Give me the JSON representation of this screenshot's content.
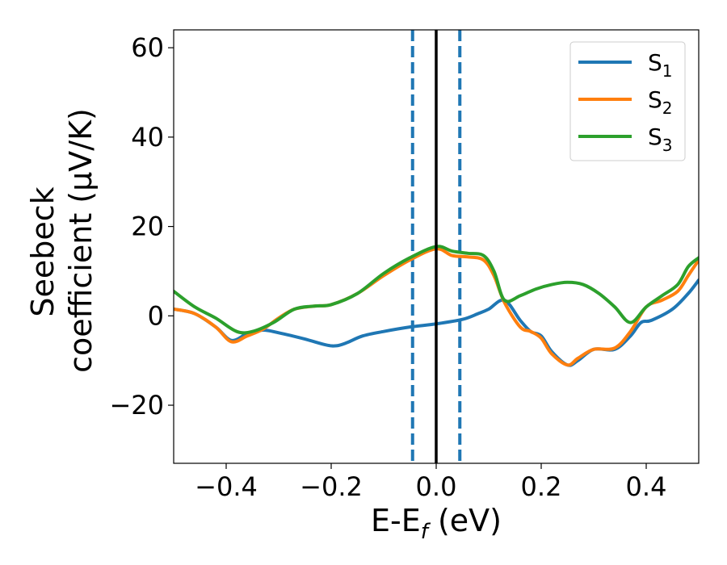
{
  "chart_data": {
    "type": "line",
    "xlabel": "E-E",
    "xlabel_sub": "f",
    "xlabel_unit": " (eV)",
    "ylabel_line1": "Seebeck",
    "ylabel_line2": "coefficient  (μV/K)",
    "xlim": [
      -0.5,
      0.5
    ],
    "ylim": [
      -33,
      64
    ],
    "xticks": [
      -0.4,
      -0.2,
      0.0,
      0.2,
      0.4
    ],
    "xtick_labels": [
      "−0.4",
      "−0.2",
      "0.0",
      "0.2",
      "0.4"
    ],
    "yticks": [
      -20,
      0,
      20,
      40,
      60
    ],
    "ytick_labels": [
      "−20",
      "0",
      "20",
      "40",
      "60"
    ],
    "grid": false,
    "legend_position": "top-right",
    "vlines": [
      {
        "x": 0.0,
        "style": "solid",
        "color": "#000000"
      },
      {
        "x": -0.045,
        "style": "dashed",
        "color": "#1f77b4"
      },
      {
        "x": 0.045,
        "style": "dashed",
        "color": "#1f77b4"
      }
    ],
    "series": [
      {
        "name": "S",
        "sub": "1",
        "color": "#1f77b4",
        "x": [
          -0.5,
          -0.46,
          -0.42,
          -0.39,
          -0.36,
          -0.33,
          -0.3,
          -0.25,
          -0.21,
          -0.19,
          -0.17,
          -0.14,
          -0.1,
          -0.05,
          0.0,
          0.05,
          0.08,
          0.1,
          0.13,
          0.16,
          0.18,
          0.2,
          0.22,
          0.25,
          0.27,
          0.3,
          0.34,
          0.37,
          0.39,
          0.41,
          0.45,
          0.48,
          0.5
        ],
        "y": [
          1.5,
          0.5,
          -2.5,
          -5.5,
          -4.0,
          -3.2,
          -3.8,
          -5.2,
          -6.5,
          -6.7,
          -6.0,
          -4.5,
          -3.5,
          -2.5,
          -1.8,
          -0.8,
          0.5,
          1.5,
          3.5,
          -1.0,
          -3.5,
          -4.5,
          -8.0,
          -11.0,
          -10.0,
          -7.5,
          -7.5,
          -4.5,
          -1.5,
          -1.0,
          1.5,
          5.0,
          8.0
        ]
      },
      {
        "name": "S",
        "sub": "2",
        "color": "#ff7f0e",
        "x": [
          -0.5,
          -0.46,
          -0.42,
          -0.39,
          -0.36,
          -0.33,
          -0.3,
          -0.27,
          -0.23,
          -0.2,
          -0.15,
          -0.1,
          -0.05,
          0.0,
          0.03,
          0.06,
          0.09,
          0.11,
          0.13,
          0.16,
          0.18,
          0.2,
          0.22,
          0.25,
          0.27,
          0.3,
          0.34,
          0.37,
          0.4,
          0.43,
          0.46,
          0.48,
          0.5
        ],
        "y": [
          1.5,
          0.5,
          -2.5,
          -5.8,
          -4.5,
          -3.0,
          -0.5,
          1.5,
          2.2,
          2.5,
          5.0,
          9.0,
          12.5,
          15.0,
          13.5,
          13.2,
          12.5,
          9.0,
          3.0,
          -2.5,
          -3.5,
          -5.0,
          -8.5,
          -11.0,
          -9.5,
          -7.5,
          -7.2,
          -3.5,
          2.0,
          3.5,
          5.5,
          9.0,
          12.5
        ]
      },
      {
        "name": "S",
        "sub": "3",
        "color": "#2ca02c",
        "x": [
          -0.5,
          -0.46,
          -0.42,
          -0.38,
          -0.35,
          -0.31,
          -0.27,
          -0.23,
          -0.2,
          -0.15,
          -0.1,
          -0.05,
          0.0,
          0.03,
          0.06,
          0.09,
          0.11,
          0.13,
          0.16,
          0.19,
          0.22,
          0.25,
          0.28,
          0.31,
          0.34,
          0.37,
          0.4,
          0.43,
          0.46,
          0.48,
          0.5
        ],
        "y": [
          5.5,
          2.0,
          -0.5,
          -3.5,
          -3.5,
          -1.5,
          1.5,
          2.2,
          2.5,
          5.0,
          9.5,
          13.0,
          15.5,
          14.5,
          14.0,
          13.5,
          10.0,
          3.5,
          4.5,
          6.0,
          7.0,
          7.5,
          7.0,
          5.0,
          2.0,
          -1.5,
          2.0,
          4.5,
          7.0,
          11.0,
          13.0
        ]
      }
    ]
  }
}
